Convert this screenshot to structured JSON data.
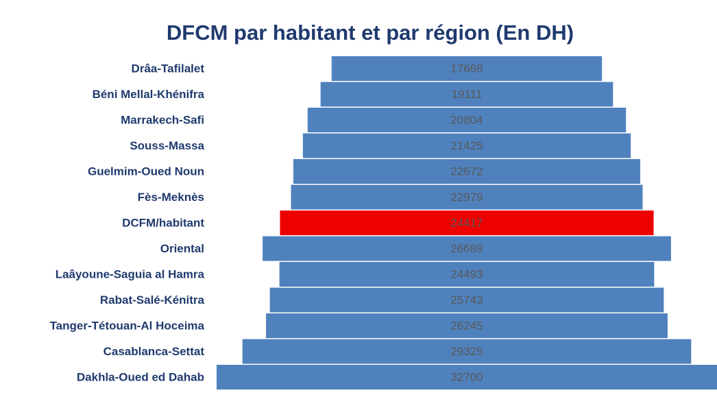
{
  "chart_data": {
    "type": "funnel",
    "title": "DFCM par habitant et par région (En DH)",
    "categories": [
      "Drâa-Tafilalet",
      "Béni Mellal-Khénifra",
      "Marrakech-Safi",
      "Souss-Massa",
      "Guelmim-Oued Noun",
      "Fès-Meknès",
      "DCFM/habitant",
      "Oriental",
      "Laâyoune-Saguia al Hamra",
      "Rabat-Salé-Kénitra",
      "Tanger-Tétouan-Al Hoceima",
      "Casablanca-Settat",
      "Dakhla-Oued ed Dahab"
    ],
    "values": [
      17668,
      19111,
      20804,
      21425,
      22672,
      22979,
      24417,
      26689,
      24493,
      25743,
      26245,
      29325,
      32700
    ],
    "colors": [
      "#4f81bd",
      "#4f81bd",
      "#4f81bd",
      "#4f81bd",
      "#4f81bd",
      "#4f81bd",
      "#ee0000",
      "#4f81bd",
      "#4f81bd",
      "#4f81bd",
      "#4f81bd",
      "#4f81bd",
      "#4f81bd"
    ]
  }
}
